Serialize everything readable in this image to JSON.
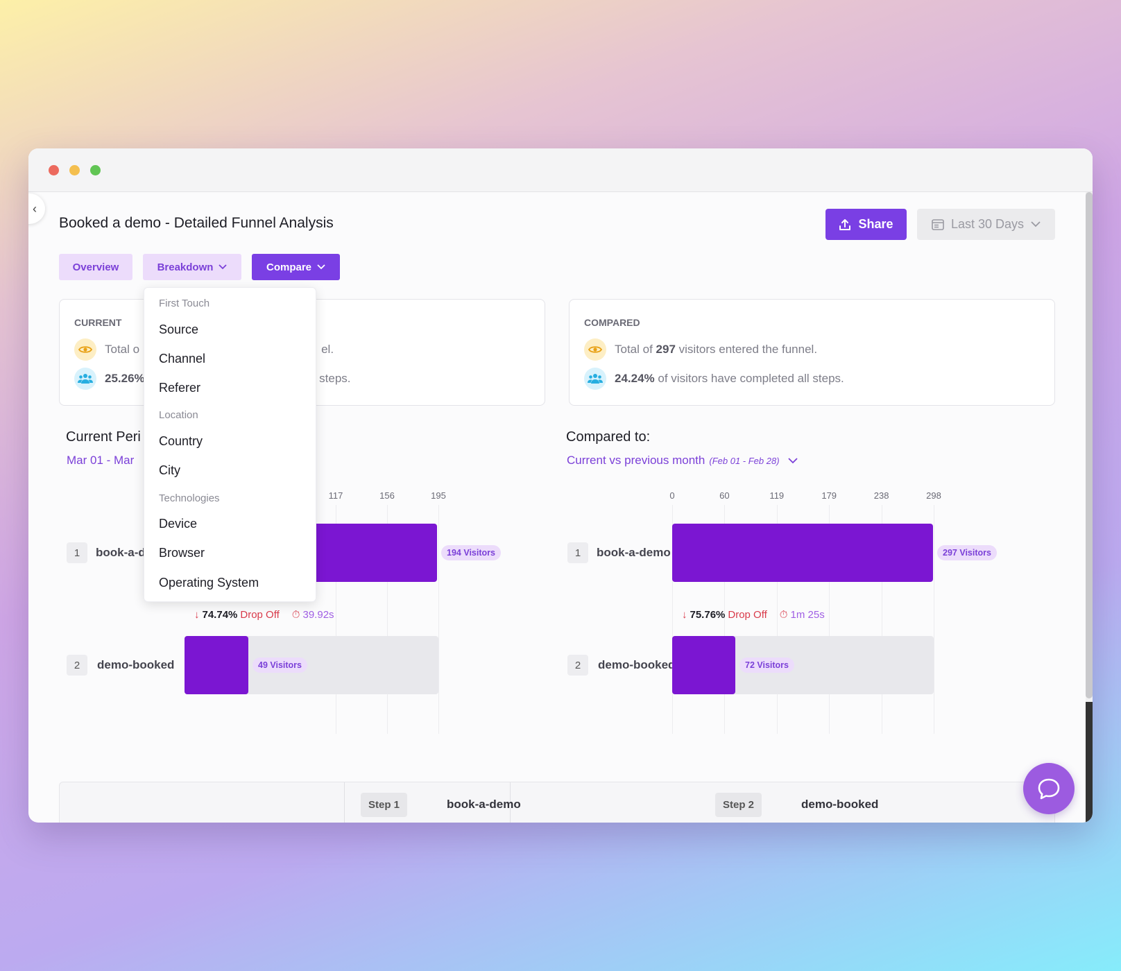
{
  "page": {
    "title": "Booked a demo - Detailed Funnel Analysis"
  },
  "header": {
    "share_label": "Share",
    "date_label": "Last 30 Days"
  },
  "tabs": {
    "overview": "Overview",
    "breakdown": "Breakdown",
    "compare": "Compare"
  },
  "current_card": {
    "label": "CURRENT",
    "line1_prefix": "Total o",
    "line1_suffix": "el.",
    "line2_pct": "25.26%",
    "line2_suffix": "l steps."
  },
  "compared_card": {
    "label": "COMPARED",
    "line1_prefix": "Total of ",
    "line1_count": "297",
    "line1_suffix": " visitors entered the funnel.",
    "line2_pct": "24.24%",
    "line2_suffix": " of visitors have completed all steps."
  },
  "current_period": {
    "title": "Current Peri",
    "range": "Mar 01 - Mar",
    "ticks": [
      "117",
      "156",
      "195"
    ],
    "steps": [
      {
        "num": "1",
        "name": "book-a-d",
        "visitors": "194 Visitors",
        "value": 194
      },
      {
        "num": "2",
        "name": "demo-booked",
        "visitors": "49 Visitors",
        "value": 49
      }
    ],
    "max": 195,
    "dropoff": {
      "pct": "74.74%",
      "label": "Drop Off",
      "time": "39.92s"
    }
  },
  "compared_period": {
    "title": "Compared to:",
    "range": "Current vs previous month",
    "range_dates": "(Feb 01 - Feb 28)",
    "ticks": [
      "0",
      "60",
      "119",
      "179",
      "238",
      "298"
    ],
    "steps": [
      {
        "num": "1",
        "name": "book-a-demo",
        "visitors": "297 Visitors",
        "value": 297
      },
      {
        "num": "2",
        "name": "demo-booked",
        "visitors": "72 Visitors",
        "value": 72
      }
    ],
    "max": 298,
    "dropoff": {
      "pct": "75.76%",
      "label": "Drop Off",
      "time": "1m 25s"
    }
  },
  "table": {
    "step1_chip": "Step 1",
    "step1_name": "book-a-demo",
    "step2_chip": "Step 2",
    "step2_name": "demo-booked"
  },
  "breakdown_menu": {
    "groups": [
      {
        "label": "First Touch",
        "items": [
          "Source",
          "Channel",
          "Referer"
        ]
      },
      {
        "label": "Location",
        "items": [
          "Country",
          "City"
        ]
      },
      {
        "label": "Technologies",
        "items": [
          "Device",
          "Browser",
          "Operating System"
        ]
      }
    ]
  },
  "colors": {
    "accent": "#7a3fe4",
    "bar": "#7b16d2",
    "drop": "#d93a4a"
  }
}
